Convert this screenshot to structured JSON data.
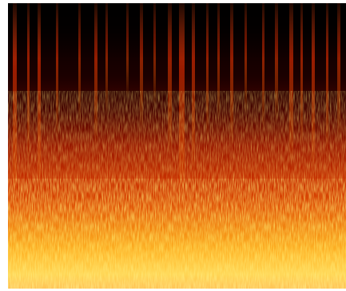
{
  "image": {
    "kind": "spectrogram",
    "colormap": [
      "#000000",
      "#3a0000",
      "#8a0e00",
      "#d22a00",
      "#f06a00",
      "#ffb000",
      "#ffe34a",
      "#fff7a8"
    ],
    "background_color": "#ffffff"
  }
}
